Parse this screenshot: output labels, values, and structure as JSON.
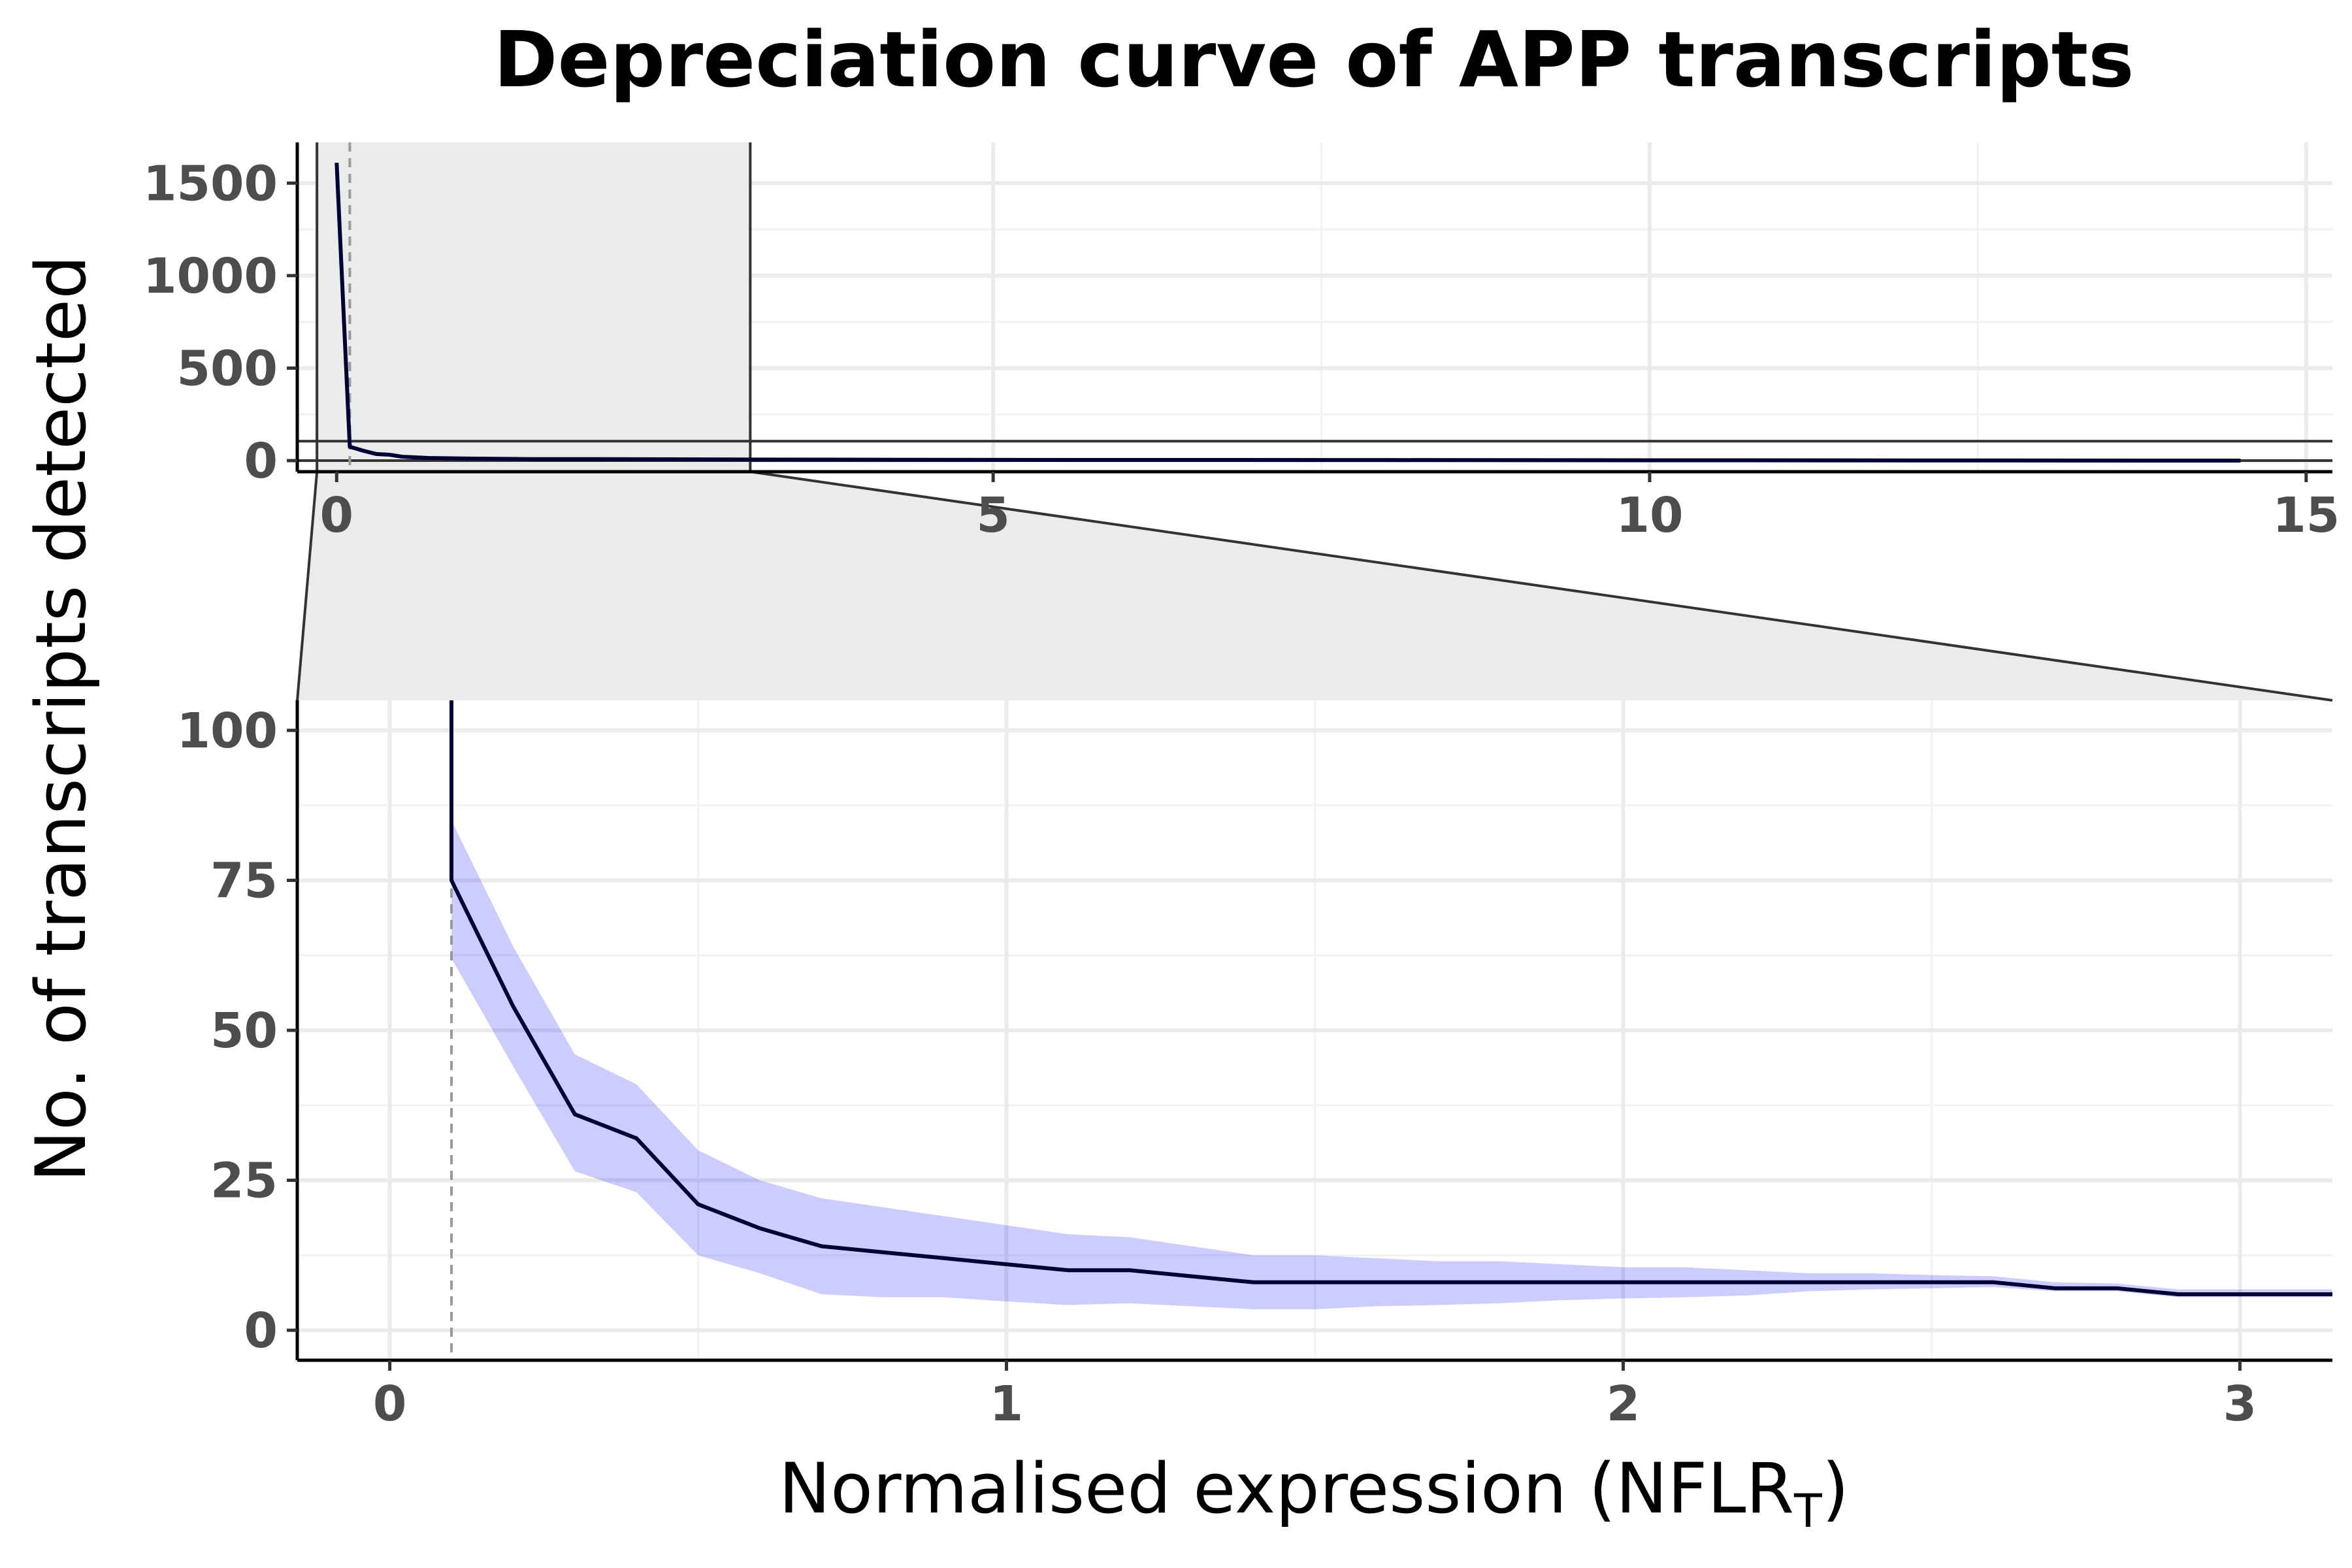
{
  "chart_data": {
    "type": "line",
    "title": "Depreciation curve of APP transcripts",
    "ylabel": "No. of transcripts detected",
    "xlabel_main": "Normalised expression (NFLR",
    "xlabel_subscript": "T",
    "xlabel_close": ")",
    "cutoff_x": 0.1,
    "colors": {
      "line": "#000033",
      "band": "#0000ff",
      "zoom": "#ebebeb"
    },
    "overview": {
      "xlim": [
        -0.3,
        15.2
      ],
      "ylim": [
        -60,
        1720
      ],
      "x_ticks": [
        0,
        5,
        10,
        15
      ],
      "x_tick_labels": [
        "0",
        "5",
        "10",
        "15"
      ],
      "y_ticks": [
        0,
        500,
        1000,
        1500
      ],
      "y_tick_labels": [
        "0",
        "500",
        "1000",
        "1500"
      ],
      "zoom_x": [
        -0.15,
        3.15
      ],
      "zoom_y": [
        0,
        105
      ],
      "x": [
        0,
        0.1,
        0.2,
        0.3,
        0.4,
        0.5,
        0.7,
        1.0,
        1.5,
        2.0,
        3.0,
        5.0,
        8.0,
        10.0,
        12.0,
        14.5
      ],
      "y": [
        1610,
        75,
        54,
        36,
        32,
        21,
        14,
        11,
        8,
        8,
        6,
        4,
        3,
        2,
        1,
        0
      ]
    },
    "detail": {
      "xlim": [
        -0.15,
        3.15
      ],
      "ylim": [
        -5,
        105
      ],
      "x_ticks": [
        0,
        1,
        2,
        3
      ],
      "x_tick_labels": [
        "0",
        "1",
        "2",
        "3"
      ],
      "y_ticks": [
        0,
        25,
        50,
        75,
        100
      ],
      "y_tick_labels": [
        "0",
        "25",
        "50",
        "75",
        "100"
      ],
      "series": [
        {
          "x": [
            0.1,
            0.2,
            0.3,
            0.4,
            0.5,
            0.6,
            0.7,
            0.8,
            0.9,
            1.0,
            1.1,
            1.2,
            1.3,
            1.4,
            1.5,
            1.6,
            1.7,
            1.8,
            1.9,
            2.0,
            2.1,
            2.2,
            2.3,
            2.4,
            2.5,
            2.6,
            2.7,
            2.8,
            2.9,
            3.0,
            3.15
          ],
          "y": [
            75,
            54,
            36,
            32,
            21,
            17,
            14,
            13,
            12,
            11,
            10,
            10,
            9,
            8,
            8,
            8,
            8,
            8,
            8,
            8,
            8,
            8,
            8,
            8,
            8,
            8,
            7,
            7,
            6,
            6,
            6
          ],
          "lower": [
            62,
            44,
            26.5,
            23,
            12.5,
            9.5,
            6,
            5.5,
            5.5,
            4.8,
            4.2,
            4.5,
            4,
            3.5,
            3.5,
            4,
            4.2,
            4.5,
            5,
            5.3,
            5.5,
            5.8,
            6.5,
            6.8,
            7,
            7.2,
            6.5,
            6.5,
            5.5,
            5.5,
            5.5
          ],
          "upper": [
            85,
            64,
            46,
            41,
            30,
            25,
            22,
            20.5,
            19,
            17.5,
            16,
            15.5,
            14,
            12.5,
            12.5,
            12,
            11.5,
            11.5,
            11,
            10.5,
            10.5,
            10,
            9.5,
            9.5,
            9.2,
            9,
            8,
            7.8,
            6.8,
            6.8,
            6.8
          ]
        }
      ]
    }
  }
}
